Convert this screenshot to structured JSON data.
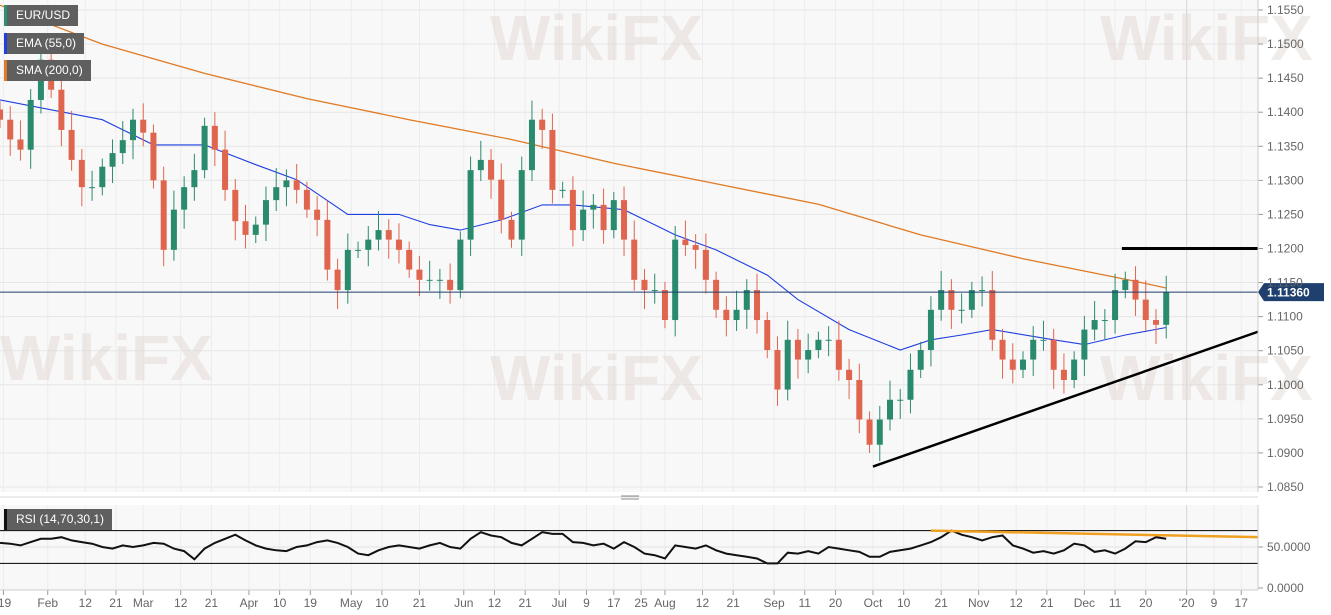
{
  "legends": [
    {
      "label": "EUR/USD",
      "color": "#2f8f76"
    },
    {
      "label": "EMA (55,0)",
      "color": "#1f3fe0"
    },
    {
      "label": "SMA (200,0)",
      "color": "#e07a24"
    }
  ],
  "rsi_legend": {
    "label": "RSI (14,70,30,1)",
    "color": "#111111"
  },
  "watermark": "WikiFX",
  "chart_data": {
    "type": "candlestick",
    "symbol": "EUR/USD",
    "colors": {
      "up": "#2a8a6e",
      "down": "#e0654f",
      "ema": "#1f3fe0",
      "sma": "#e07a24",
      "trendline": "#000000",
      "last_price_line": "#1f3f6e"
    },
    "ylim": [
      1.083,
      1.1565
    ],
    "y_ticks": [
      "1.0850",
      "1.0900",
      "1.0950",
      "1.1000",
      "1.1050",
      "1.1100",
      "1.1150",
      "1.1200",
      "1.1250",
      "1.1300",
      "1.1350",
      "1.1400",
      "1.1450",
      "1.1500",
      "1.1550"
    ],
    "x_ticks": [
      {
        "date": "2019-01-19",
        "label": "'19"
      },
      {
        "date": "2019-02-01",
        "label": "Feb"
      },
      {
        "date": "2019-02-12",
        "label": "12"
      },
      {
        "date": "2019-02-21",
        "label": "21"
      },
      {
        "date": "2019-03-01",
        "label": "Mar"
      },
      {
        "date": "2019-03-12",
        "label": "12"
      },
      {
        "date": "2019-03-21",
        "label": "21"
      },
      {
        "date": "2019-04-01",
        "label": "Apr"
      },
      {
        "date": "2019-04-10",
        "label": "10"
      },
      {
        "date": "2019-04-19",
        "label": "19"
      },
      {
        "date": "2019-05-01",
        "label": "May"
      },
      {
        "date": "2019-05-10",
        "label": "10"
      },
      {
        "date": "2019-05-21",
        "label": "21"
      },
      {
        "date": "2019-06-03",
        "label": "Jun"
      },
      {
        "date": "2019-06-12",
        "label": "12"
      },
      {
        "date": "2019-06-21",
        "label": "21"
      },
      {
        "date": "2019-07-01",
        "label": "Jul"
      },
      {
        "date": "2019-07-09",
        "label": "9"
      },
      {
        "date": "2019-07-17",
        "label": "17"
      },
      {
        "date": "2019-07-25",
        "label": "25"
      },
      {
        "date": "2019-08-01",
        "label": "Aug"
      },
      {
        "date": "2019-08-12",
        "label": "12"
      },
      {
        "date": "2019-08-21",
        "label": "21"
      },
      {
        "date": "2019-09-02",
        "label": "Sep"
      },
      {
        "date": "2019-09-11",
        "label": "11"
      },
      {
        "date": "2019-09-20",
        "label": "20"
      },
      {
        "date": "2019-10-01",
        "label": "Oct"
      },
      {
        "date": "2019-10-10",
        "label": "10"
      },
      {
        "date": "2019-10-21",
        "label": "21"
      },
      {
        "date": "2019-11-01",
        "label": "Nov"
      },
      {
        "date": "2019-11-12",
        "label": "12"
      },
      {
        "date": "2019-11-21",
        "label": "21"
      },
      {
        "date": "2019-12-02",
        "label": "Dec"
      },
      {
        "date": "2019-12-11",
        "label": "11"
      },
      {
        "date": "2019-12-20",
        "label": "20"
      },
      {
        "date": "2020-01-01",
        "label": "'20"
      },
      {
        "date": "2020-01-09",
        "label": "9"
      },
      {
        "date": "2020-01-17",
        "label": "17"
      }
    ],
    "dates": [
      "2019-01-18",
      "2019-01-21",
      "2019-01-24",
      "2019-01-27",
      "2019-01-30",
      "2019-02-02",
      "2019-02-05",
      "2019-02-08",
      "2019-02-11",
      "2019-02-14",
      "2019-02-17",
      "2019-02-20",
      "2019-02-23",
      "2019-02-26",
      "2019-03-01",
      "2019-03-04",
      "2019-03-07",
      "2019-03-10",
      "2019-03-13",
      "2019-03-16",
      "2019-03-19",
      "2019-03-22",
      "2019-03-25",
      "2019-03-28",
      "2019-03-31",
      "2019-04-03",
      "2019-04-06",
      "2019-04-09",
      "2019-04-12",
      "2019-04-15",
      "2019-04-18",
      "2019-04-21",
      "2019-04-24",
      "2019-04-27",
      "2019-04-30",
      "2019-05-03",
      "2019-05-06",
      "2019-05-09",
      "2019-05-12",
      "2019-05-15",
      "2019-05-18",
      "2019-05-21",
      "2019-05-24",
      "2019-05-27",
      "2019-05-30",
      "2019-06-02",
      "2019-06-05",
      "2019-06-08",
      "2019-06-11",
      "2019-06-14",
      "2019-06-17",
      "2019-06-20",
      "2019-06-23",
      "2019-06-26",
      "2019-06-29",
      "2019-07-02",
      "2019-07-05",
      "2019-07-08",
      "2019-07-11",
      "2019-07-14",
      "2019-07-17",
      "2019-07-20",
      "2019-07-23",
      "2019-07-26",
      "2019-07-29",
      "2019-08-01",
      "2019-08-04",
      "2019-08-07",
      "2019-08-10",
      "2019-08-13",
      "2019-08-16",
      "2019-08-19",
      "2019-08-22",
      "2019-08-25",
      "2019-08-28",
      "2019-08-31",
      "2019-09-03",
      "2019-09-06",
      "2019-09-09",
      "2019-09-12",
      "2019-09-15",
      "2019-09-18",
      "2019-09-21",
      "2019-09-24",
      "2019-09-27",
      "2019-09-30",
      "2019-10-03",
      "2019-10-06",
      "2019-10-09",
      "2019-10-12",
      "2019-10-15",
      "2019-10-18",
      "2019-10-21",
      "2019-10-24",
      "2019-10-27",
      "2019-10-30",
      "2019-11-02",
      "2019-11-05",
      "2019-11-08",
      "2019-11-11",
      "2019-11-14",
      "2019-11-17",
      "2019-11-20",
      "2019-11-23",
      "2019-11-26",
      "2019-11-29",
      "2019-12-02",
      "2019-12-05",
      "2019-12-08",
      "2019-12-11",
      "2019-12-14",
      "2019-12-17",
      "2019-12-20",
      "2019-12-23",
      "2019-12-26"
    ],
    "close": [
      1.1389,
      1.136,
      1.1345,
      1.1418,
      1.1477,
      1.1433,
      1.1374,
      1.133,
      1.129,
      1.129,
      1.132,
      1.134,
      1.1359,
      1.1389,
      1.137,
      1.13,
      1.1198,
      1.1257,
      1.129,
      1.1315,
      1.138,
      1.1345,
      1.1286,
      1.124,
      1.122,
      1.1235,
      1.1271,
      1.129,
      1.13,
      1.1286,
      1.1257,
      1.1242,
      1.1169,
      1.1139,
      1.1198,
      1.1198,
      1.1213,
      1.1227,
      1.1213,
      1.1198,
      1.1169,
      1.1154,
      1.1154,
      1.1154,
      1.1139,
      1.1213,
      1.1315,
      1.133,
      1.1301,
      1.1242,
      1.1213,
      1.1315,
      1.1389,
      1.1374,
      1.1286,
      1.1286,
      1.1227,
      1.1257,
      1.1264,
      1.1227,
      1.1271,
      1.1213,
      1.1154,
      1.1139,
      1.1139,
      1.1095,
      1.1213,
      1.1205,
      1.1198,
      1.1154,
      1.111,
      1.1095,
      1.111,
      1.1139,
      1.1095,
      1.1051,
      1.0993,
      1.1066,
      1.1037,
      1.1051,
      1.1066,
      1.1066,
      1.1022,
      1.1007,
      1.0949,
      1.0912,
      1.0949,
      1.0978,
      1.0978,
      1.1022,
      1.1051,
      1.111,
      1.1139,
      1.111,
      1.111,
      1.1139,
      1.1139,
      1.1066,
      1.1037,
      1.1022,
      1.1037,
      1.1066,
      1.1066,
      1.1022,
      1.1007,
      1.1037,
      1.1081,
      1.1095,
      1.1095,
      1.1139,
      1.1154,
      1.1125,
      1.1095,
      1.1088,
      1.1136
    ],
    "ema_55": [
      [
        "2019-01-18",
        1.1418
      ],
      [
        "2019-02-17",
        1.1389
      ],
      [
        "2019-03-04",
        1.1352
      ],
      [
        "2019-03-19",
        1.1352
      ],
      [
        "2019-04-03",
        1.1323
      ],
      [
        "2019-04-15",
        1.1301
      ],
      [
        "2019-04-30",
        1.125
      ],
      [
        "2019-05-15",
        1.125
      ],
      [
        "2019-05-24",
        1.1235
      ],
      [
        "2019-06-02",
        1.1227
      ],
      [
        "2019-06-14",
        1.1242
      ],
      [
        "2019-06-26",
        1.1264
      ],
      [
        "2019-07-05",
        1.1264
      ],
      [
        "2019-07-20",
        1.1257
      ],
      [
        "2019-08-04",
        1.122
      ],
      [
        "2019-08-16",
        1.1198
      ],
      [
        "2019-08-31",
        1.1161
      ],
      [
        "2019-09-09",
        1.1125
      ],
      [
        "2019-09-24",
        1.1081
      ],
      [
        "2019-10-09",
        1.1051
      ],
      [
        "2019-10-18",
        1.1066
      ],
      [
        "2019-10-27",
        1.1073
      ],
      [
        "2019-11-05",
        1.1081
      ],
      [
        "2019-11-23",
        1.1066
      ],
      [
        "2019-12-02",
        1.1059
      ],
      [
        "2019-12-14",
        1.1073
      ],
      [
        "2019-12-26",
        1.1084
      ]
    ],
    "sma_200": [
      [
        "2019-01-18",
        1.1557
      ],
      [
        "2019-02-17",
        1.15
      ],
      [
        "2019-03-19",
        1.1457
      ],
      [
        "2019-04-18",
        1.142
      ],
      [
        "2019-05-18",
        1.1389
      ],
      [
        "2019-06-17",
        1.136
      ],
      [
        "2019-07-17",
        1.1325
      ],
      [
        "2019-08-16",
        1.1295
      ],
      [
        "2019-09-15",
        1.1265
      ],
      [
        "2019-10-15",
        1.122
      ],
      [
        "2019-11-14",
        1.1185
      ],
      [
        "2019-12-14",
        1.1155
      ],
      [
        "2019-12-26",
        1.1142
      ]
    ],
    "last_price": "1.11360",
    "last_price_value": 1.1136,
    "horizontal_resistance": {
      "price": 1.12,
      "from": "2019-12-13"
    },
    "trendline": [
      [
        "2019-10-01",
        1.088
      ],
      [
        "2020-01-22",
        1.1078
      ]
    ],
    "rsi": {
      "label": "RSI (14,70,30,1)",
      "levels": [
        70,
        30
      ],
      "ylim": [
        0,
        100
      ],
      "y_ticks": [
        "50.0000",
        "0.0000"
      ],
      "values": [
        55,
        54,
        52,
        56,
        60,
        60,
        62,
        58,
        56,
        54,
        50,
        48,
        52,
        50,
        52,
        55,
        54,
        48,
        45,
        35,
        48,
        55,
        60,
        65,
        58,
        52,
        48,
        46,
        45,
        50,
        52,
        56,
        58,
        55,
        50,
        42,
        40,
        46,
        50,
        52,
        50,
        48,
        52,
        55,
        50,
        48,
        60,
        68,
        64,
        62,
        55,
        52,
        60,
        68,
        66,
        66,
        56,
        55,
        52,
        54,
        48,
        56,
        50,
        42,
        40,
        36,
        52,
        50,
        48,
        52,
        46,
        42,
        40,
        38,
        36,
        30,
        30,
        43,
        42,
        45,
        42,
        50,
        48,
        46,
        44,
        38,
        38,
        44,
        46,
        48,
        52,
        56,
        62,
        70,
        65,
        62,
        58,
        62,
        64,
        52,
        48,
        43,
        45,
        42,
        46,
        54,
        52,
        44,
        46,
        42,
        48,
        57,
        56,
        62,
        60
      ]
    },
    "rsi_trendline": [
      [
        "2019-10-18",
        70
      ],
      [
        "2020-01-22",
        62
      ]
    ]
  }
}
